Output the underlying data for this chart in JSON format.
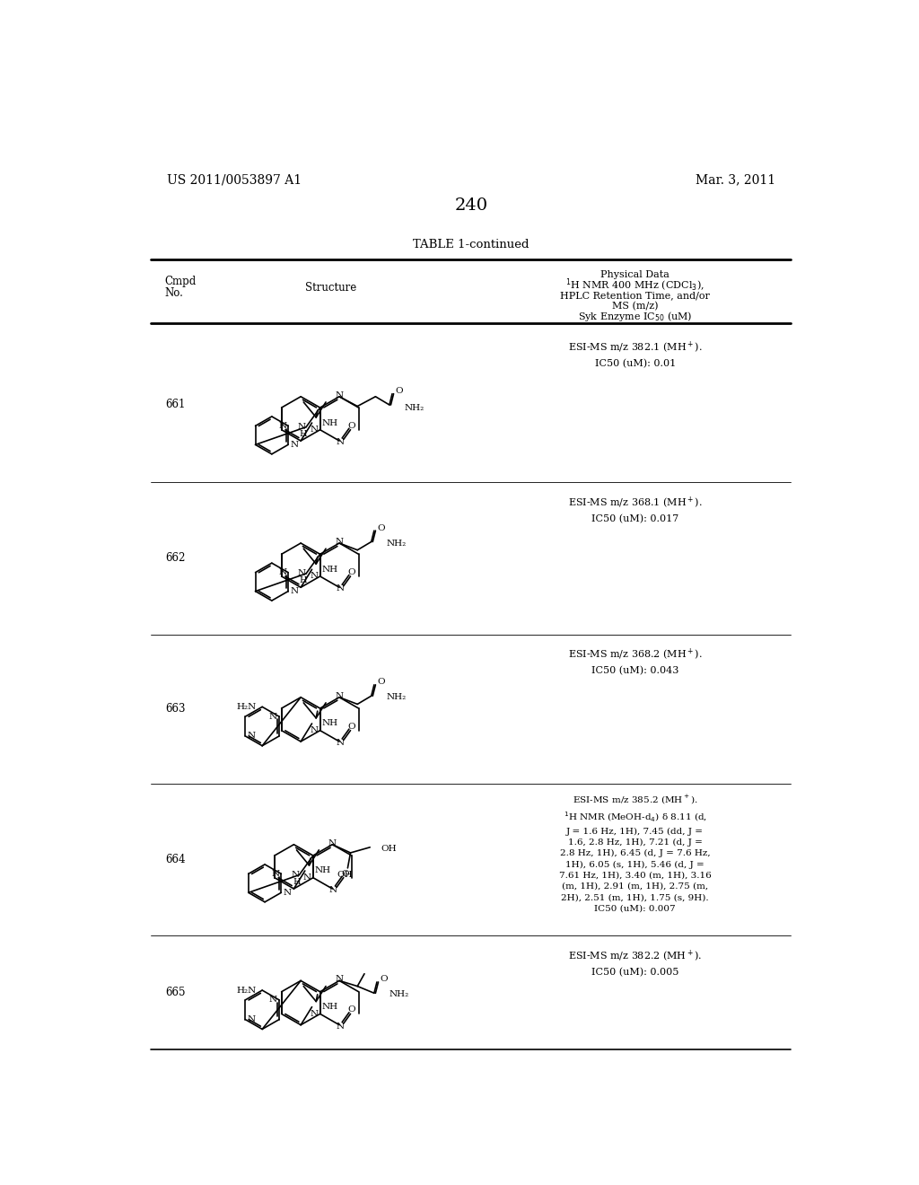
{
  "page_number": "240",
  "patent_number": "US 2011/0053897 A1",
  "patent_date": "Mar. 3, 2011",
  "table_title": "TABLE 1-continued",
  "background_color": "#ffffff",
  "row_boundaries": [
    268,
    492,
    712,
    928,
    1148,
    1312
  ],
  "compounds": [
    {
      "number": "661",
      "data": "ESI-MS m/z 382.1 (MH⁺).\nIC50 (uM): 0.01"
    },
    {
      "number": "662",
      "data": "ESI-MS m/z 368.1 (MH⁺).\nIC50 (uM): 0.017"
    },
    {
      "number": "663",
      "data": "ESI-MS m/z 368.2 (MH⁺).\nIC50 (uM): 0.043"
    },
    {
      "number": "664",
      "data": "ESI-MS m/z 385.2 (MH⁺).\n¹H NMR (MeOH-d₄) δ 8.11 (d,\nJ = 1.6 Hz, 1H), 7.45 (dd, J =\n1.6, 2.8 Hz, 1H), 7.21 (d, J =\n2.8 Hz, 1H), 6.45 (d, J = 7.6 Hz,\n1H), 6.05 (s, 1H), 5.46 (d, J =\n7.61 Hz, 1H), 3.40 (m, 1H), 3.16\n(m, 1H), 2.91 (m, 1H), 2.75 (m,\n2H), 2.51 (m, 1H), 1.75 (s, 9H).\nIC50 (uM): 0.007"
    },
    {
      "number": "665",
      "data": "ESI-MS m/z 382.2 (MH⁺).\nIC50 (uM): 0.005"
    }
  ]
}
